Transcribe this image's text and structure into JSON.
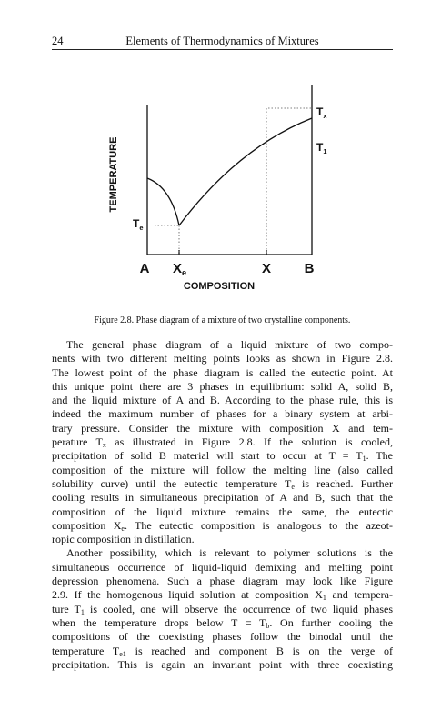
{
  "header": {
    "page_number": "24",
    "title": "Elements of Thermodynamics of Mixtures"
  },
  "figure": {
    "y_axis_label": "TEMPERATURE",
    "x_axis_label": "COMPOSITION",
    "x_labels": [
      [
        "A"
      ],
      [
        "X",
        {
          "sub": "e"
        }
      ],
      [
        "X"
      ],
      [
        "B"
      ]
    ],
    "temperature_labels": [
      [
        "T",
        {
          "sub": "e"
        }
      ],
      [
        "T",
        {
          "sub": "x"
        }
      ],
      [
        "T",
        {
          "sub": "1"
        }
      ]
    ],
    "caption": "Figure 2.8. Phase diagram of a mixture of two crystalline components."
  },
  "body": {
    "paragraphs": [
      [
        [
          "The general phase diagram of a liquid mixture of two compo-"
        ],
        [
          "nents with two different melting points looks as shown in Figure 2.8."
        ],
        [
          "The lowest point of the phase diagram is called the eutectic point. At"
        ],
        [
          "this unique point there are 3 phases in equilibrium: solid A, solid B,"
        ],
        [
          "and the liquid mixture of A and B. According to the phase rule, this is"
        ],
        [
          "indeed the maximum number of phases for a binary system at arbi-"
        ],
        [
          "trary pressure. Consider the mixture with composition X and tem-"
        ],
        [
          "perature T",
          {
            "sub": "x"
          },
          " as illustrated in Figure 2.8. If the solution is cooled,"
        ],
        [
          "precipitation of solid B material will start to occur at T = T",
          {
            "sub": "1"
          },
          ". The"
        ],
        [
          "composition of the mixture will follow the melting line (also called"
        ],
        [
          "solubility curve) until the eutectic temperature T",
          {
            "sub": "e"
          },
          " is reached. Further"
        ],
        [
          "cooling results in simultaneous precipitation of A and B, such that the"
        ],
        [
          "composition of the liquid mixture remains the same, the eutectic"
        ],
        [
          "composition X",
          {
            "sub": "e"
          },
          ". The eutectic composition is analogous to the azeot-"
        ],
        [
          "ropic composition in distillation."
        ]
      ],
      [
        [
          "Another possibility, which is relevant to polymer solutions is the"
        ],
        [
          "simultaneous occurrence of liquid-liquid demixing and melting point"
        ],
        [
          "depression phenomena. Such a phase diagram may look like Figure"
        ],
        [
          "2.9. If the homogenous liquid solution at composition X",
          {
            "sub": "1"
          },
          " and tempera-"
        ],
        [
          "ture T",
          {
            "sub": "1"
          },
          " is cooled, one will observe the occurrence of two liquid phases"
        ],
        [
          "when the temperature drops below T = T",
          {
            "sub": "b"
          },
          ". On further cooling the"
        ],
        [
          "compositions of the coexisting phases follow the binodal until the"
        ],
        [
          "temperature T",
          {
            "sub": "e1"
          },
          " is reached and component B is on the verge of"
        ],
        [
          "precipitation. This is again an invariant point with three coexisting"
        ]
      ]
    ]
  }
}
